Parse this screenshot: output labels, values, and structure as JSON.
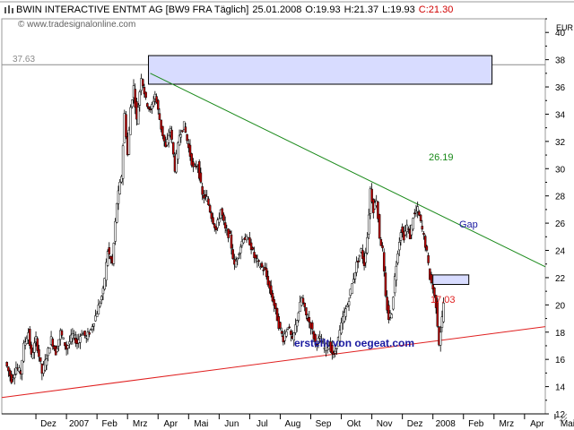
{
  "chart_data": {
    "type": "candlestick",
    "header": {
      "security": "BWIN INTERACTIVE ENTMT AG [BW9 FRA  Täglich]",
      "date": "25.01.2008",
      "open": "O:19.93",
      "high": "H:21.37",
      "low": "L:19.93",
      "close": "C:21.30"
    },
    "source": "© www.tradesignalonline.com",
    "credit": "erstellt von oegeat.com",
    "currency": "EUR",
    "y_ticks": [
      "40",
      "38",
      "36",
      "34",
      "32",
      "30",
      "28",
      "26",
      "24",
      "22",
      "20",
      "18",
      "16",
      "14",
      "12"
    ],
    "ylim": [
      12,
      41
    ],
    "x_ticks": [
      {
        "label": "Dez",
        "t": 1
      },
      {
        "label": "2007",
        "t": 2
      },
      {
        "label": "Feb",
        "t": 3
      },
      {
        "label": "Mrz",
        "t": 4
      },
      {
        "label": "Apr",
        "t": 5
      },
      {
        "label": "Mai",
        "t": 6
      },
      {
        "label": "Jun",
        "t": 7
      },
      {
        "label": "Jul",
        "t": 8
      },
      {
        "label": "Aug",
        "t": 9
      },
      {
        "label": "Sep",
        "t": 10
      },
      {
        "label": "Okt",
        "t": 11
      },
      {
        "label": "Nov",
        "t": 12
      },
      {
        "label": "Dez",
        "t": 13
      },
      {
        "label": "2008",
        "t": 14
      },
      {
        "label": "Feb",
        "t": 15
      },
      {
        "label": "Mrz",
        "t": 16
      },
      {
        "label": "Apr",
        "t": 17
      },
      {
        "label": "Mai",
        "t": 18
      }
    ],
    "xlim": [
      0,
      18.3
    ],
    "price_path": [
      [
        0.0,
        15.8
      ],
      [
        0.2,
        14.5
      ],
      [
        0.35,
        15.4
      ],
      [
        0.5,
        15.0
      ],
      [
        0.6,
        17.0
      ],
      [
        0.75,
        18.0
      ],
      [
        0.85,
        16.2
      ],
      [
        1.0,
        17.5
      ],
      [
        1.2,
        15.0
      ],
      [
        1.35,
        16.2
      ],
      [
        1.5,
        17.5
      ],
      [
        1.65,
        16.5
      ],
      [
        1.8,
        18.0
      ],
      [
        2.0,
        16.8
      ],
      [
        2.2,
        17.8
      ],
      [
        2.35,
        17.2
      ],
      [
        2.5,
        18.0
      ],
      [
        2.65,
        17.6
      ],
      [
        2.8,
        18.2
      ],
      [
        3.0,
        19.5
      ],
      [
        3.2,
        21.0
      ],
      [
        3.35,
        24.0
      ],
      [
        3.5,
        23.0
      ],
      [
        3.65,
        27.5
      ],
      [
        3.8,
        29.5
      ],
      [
        3.9,
        34.0
      ],
      [
        4.0,
        31.0
      ],
      [
        4.1,
        34.5
      ],
      [
        4.2,
        36.0
      ],
      [
        4.3,
        33.5
      ],
      [
        4.45,
        36.8
      ],
      [
        4.6,
        35.0
      ],
      [
        4.75,
        34.2
      ],
      [
        4.9,
        35.5
      ],
      [
        5.1,
        33.0
      ],
      [
        5.25,
        31.5
      ],
      [
        5.4,
        33.0
      ],
      [
        5.55,
        30.0
      ],
      [
        5.7,
        32.5
      ],
      [
        5.85,
        33.2
      ],
      [
        6.0,
        31.5
      ],
      [
        6.15,
        30.0
      ],
      [
        6.3,
        30.3
      ],
      [
        6.45,
        28.0
      ],
      [
        6.6,
        27.8
      ],
      [
        6.75,
        26.5
      ],
      [
        6.9,
        25.5
      ],
      [
        7.05,
        27.0
      ],
      [
        7.2,
        25.5
      ],
      [
        7.35,
        25.0
      ],
      [
        7.5,
        22.8
      ],
      [
        7.65,
        24.0
      ],
      [
        7.8,
        25.0
      ],
      [
        8.0,
        24.6
      ],
      [
        8.15,
        23.5
      ],
      [
        8.3,
        23.0
      ],
      [
        8.5,
        22.5
      ],
      [
        8.65,
        21.2
      ],
      [
        8.8,
        20.0
      ],
      [
        8.95,
        18.5
      ],
      [
        9.1,
        17.5
      ],
      [
        9.25,
        18.5
      ],
      [
        9.4,
        17.3
      ],
      [
        9.55,
        19.0
      ],
      [
        9.7,
        20.5
      ],
      [
        9.85,
        19.2
      ],
      [
        10.0,
        18.5
      ],
      [
        10.15,
        17.2
      ],
      [
        10.3,
        17.5
      ],
      [
        10.45,
        16.8
      ],
      [
        10.6,
        17.1
      ],
      [
        10.75,
        16.2
      ],
      [
        10.9,
        17.5
      ],
      [
        11.05,
        19.0
      ],
      [
        11.2,
        20.0
      ],
      [
        11.35,
        21.5
      ],
      [
        11.5,
        23.0
      ],
      [
        11.65,
        24.0
      ],
      [
        11.75,
        23.0
      ],
      [
        11.85,
        25.0
      ],
      [
        11.95,
        28.5
      ],
      [
        12.05,
        27.0
      ],
      [
        12.15,
        27.8
      ],
      [
        12.25,
        25.0
      ],
      [
        12.35,
        24.0
      ],
      [
        12.45,
        20.5
      ],
      [
        12.55,
        19.0
      ],
      [
        12.65,
        19.5
      ],
      [
        12.75,
        22.0
      ],
      [
        12.85,
        24.0
      ],
      [
        12.95,
        25.5
      ],
      [
        13.05,
        25.0
      ],
      [
        13.15,
        25.8
      ],
      [
        13.25,
        25.0
      ],
      [
        13.35,
        26.5
      ],
      [
        13.5,
        27.0
      ],
      [
        13.6,
        26.0
      ],
      [
        13.7,
        25.0
      ],
      [
        13.8,
        23.8
      ],
      [
        13.9,
        22.0
      ],
      [
        14.0,
        21.2
      ],
      [
        14.1,
        20.0
      ],
      [
        14.2,
        17.2
      ],
      [
        14.3,
        19.0
      ],
      [
        14.4,
        21.3
      ]
    ],
    "annotations": {
      "price_37_63": "37.63",
      "resistance_value": "26.19",
      "support_value": "17.03",
      "gap_label": "Gap"
    },
    "line_values": {
      "top_level": 37.63,
      "resistance": {
        "from": [
          4.45,
          37.0
        ],
        "to": [
          18.3,
          22.8
        ]
      },
      "support": {
        "from": [
          0.0,
          13.2
        ],
        "to": [
          18.3,
          18.4
        ]
      },
      "top_box": {
        "t0": 4.45,
        "t1": 15.7,
        "y0": 36.2,
        "y1": 38.3
      },
      "gap_box": {
        "t0": 14.0,
        "t1": 15.2,
        "y0": 21.5,
        "y1": 22.2
      }
    },
    "colors": {
      "up": "#ffffff",
      "down": "#c00000",
      "resistance": "#1a8a1a",
      "support": "#e02020",
      "gap": "#1a1aa0",
      "box_fill": "#d8dcff",
      "credit": "#1a1aa0"
    }
  }
}
